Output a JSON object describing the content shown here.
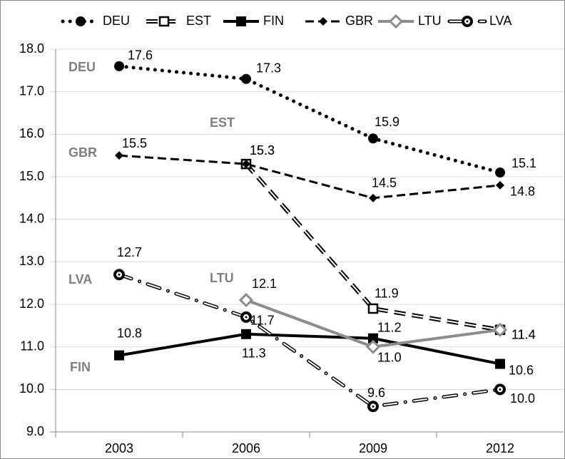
{
  "chart_data": {
    "type": "line",
    "categories": [
      "2003",
      "2006",
      "2009",
      "2012"
    ],
    "series": [
      {
        "name": "DEU",
        "color": "#000000",
        "line_style": "dotted",
        "marker": "circle",
        "values": [
          17.6,
          17.3,
          15.9,
          15.1
        ],
        "value_labels": [
          "17.6",
          "17.3",
          "15.9",
          "15.1"
        ]
      },
      {
        "name": "EST",
        "color": "#000000",
        "line_style": "double-dashed",
        "marker": "open-square",
        "values": [
          null,
          15.3,
          11.9,
          11.4
        ],
        "value_labels": [
          null,
          "15.3",
          "11.9",
          "11.4"
        ]
      },
      {
        "name": "FIN",
        "color": "#000000",
        "line_style": "solid",
        "marker": "square",
        "values": [
          10.8,
          11.3,
          11.2,
          10.6
        ],
        "value_labels": [
          "10.8",
          "11.3",
          "11.2",
          "10.6"
        ]
      },
      {
        "name": "GBR",
        "color": "#000000",
        "line_style": "dashed",
        "marker": "diamond",
        "values": [
          15.5,
          15.3,
          14.5,
          14.8
        ],
        "value_labels": [
          "15.5",
          "15.3",
          "14.5",
          "14.8"
        ]
      },
      {
        "name": "LTU",
        "color": "#8c8c8c",
        "line_style": "solid",
        "marker": "open-diamond",
        "values": [
          null,
          12.1,
          11.0,
          11.4
        ],
        "value_labels": [
          null,
          "12.1",
          "11.0",
          "11.4"
        ]
      },
      {
        "name": "LVA",
        "color": "#000000",
        "line_style": "dash-dot",
        "marker": "ring",
        "values": [
          12.7,
          11.7,
          9.6,
          10.0
        ],
        "value_labels": [
          "12.7",
          "11.7",
          "9.6",
          "10.0"
        ]
      }
    ],
    "ylim": [
      9,
      18
    ],
    "yticks": [
      {
        "value": 9,
        "label": "9.0"
      },
      {
        "value": 10,
        "label": "10.0"
      },
      {
        "value": 11,
        "label": "11.0"
      },
      {
        "value": 12,
        "label": "12.0"
      },
      {
        "value": 13,
        "label": "13.0"
      },
      {
        "value": 14,
        "label": "14.0"
      },
      {
        "value": 15,
        "label": "15.0"
      },
      {
        "value": 16,
        "label": "16.0"
      },
      {
        "value": 17,
        "label": "17.0"
      },
      {
        "value": 18,
        "label": "18.0"
      }
    ],
    "grid": true,
    "legend": "top"
  }
}
